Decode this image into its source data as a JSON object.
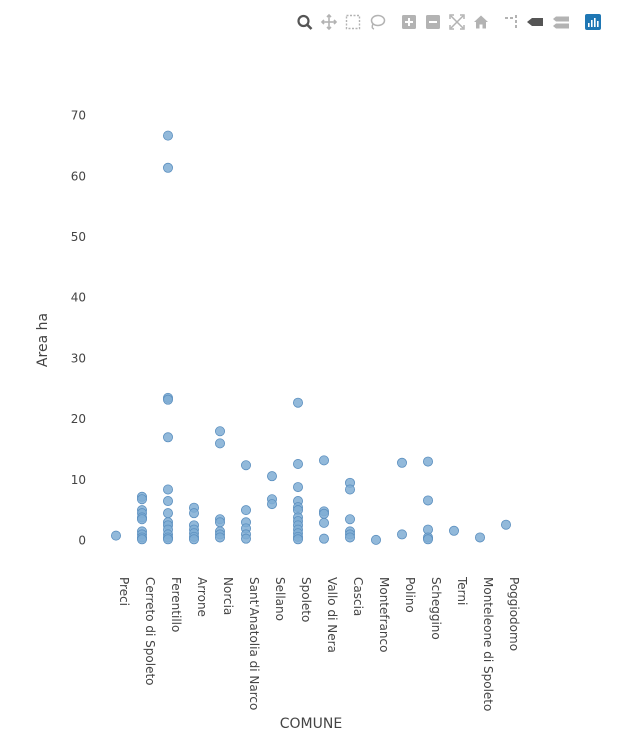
{
  "modebar": {
    "buttons": [
      "zoom-icon",
      "pan-icon",
      "box-select-icon",
      "lasso-select-icon",
      "zoom-in-icon",
      "zoom-out-icon",
      "autoscale-icon",
      "reset-axes-icon",
      "spike-lines-icon",
      "hover-closest-icon",
      "hover-compare-icon",
      "plotly-logo-icon"
    ],
    "accent": "#1f77b4",
    "icon_color": "#b3b3b3"
  },
  "chart_data": {
    "type": "scatter",
    "title": "",
    "xlabel": "COMUNE",
    "ylabel": "Area ha",
    "categories": [
      "Preci",
      "Cerreto di Spoleto",
      "Ferentillo",
      "Arrone",
      "Norcia",
      "Sant'Anatolia di Narco",
      "Sellano",
      "Spoleto",
      "Vallo di Nera",
      "Cascia",
      "Montefranco",
      "Polino",
      "Scheggino",
      "Terni",
      "Monteleone di Spoleto",
      "Poggiodomo"
    ],
    "yticks": [
      0,
      10,
      20,
      30,
      40,
      50,
      60,
      70
    ],
    "ylim": [
      -3,
      73
    ],
    "grid": false,
    "marker_color": "#7fadd3",
    "marker_line": "#5b8fbf",
    "points": [
      {
        "x": "Preci",
        "y": 0.8
      },
      {
        "x": "Cerreto di Spoleto",
        "y": 7.2
      },
      {
        "x": "Cerreto di Spoleto",
        "y": 6.8
      },
      {
        "x": "Cerreto di Spoleto",
        "y": 5.0
      },
      {
        "x": "Cerreto di Spoleto",
        "y": 4.5
      },
      {
        "x": "Cerreto di Spoleto",
        "y": 3.8
      },
      {
        "x": "Cerreto di Spoleto",
        "y": 3.5
      },
      {
        "x": "Cerreto di Spoleto",
        "y": 1.5
      },
      {
        "x": "Cerreto di Spoleto",
        "y": 1.0
      },
      {
        "x": "Cerreto di Spoleto",
        "y": 0.5
      },
      {
        "x": "Cerreto di Spoleto",
        "y": 0.2
      },
      {
        "x": "Ferentillo",
        "y": 66.7
      },
      {
        "x": "Ferentillo",
        "y": 61.4
      },
      {
        "x": "Ferentillo",
        "y": 23.5
      },
      {
        "x": "Ferentillo",
        "y": 23.2
      },
      {
        "x": "Ferentillo",
        "y": 17.0
      },
      {
        "x": "Ferentillo",
        "y": 8.4
      },
      {
        "x": "Ferentillo",
        "y": 6.5
      },
      {
        "x": "Ferentillo",
        "y": 4.5
      },
      {
        "x": "Ferentillo",
        "y": 3.0
      },
      {
        "x": "Ferentillo",
        "y": 2.5
      },
      {
        "x": "Ferentillo",
        "y": 1.8
      },
      {
        "x": "Ferentillo",
        "y": 1.0
      },
      {
        "x": "Ferentillo",
        "y": 0.5
      },
      {
        "x": "Ferentillo",
        "y": 0.2
      },
      {
        "x": "Arrone",
        "y": 5.4
      },
      {
        "x": "Arrone",
        "y": 4.5
      },
      {
        "x": "Arrone",
        "y": 2.5
      },
      {
        "x": "Arrone",
        "y": 1.8
      },
      {
        "x": "Arrone",
        "y": 1.2
      },
      {
        "x": "Arrone",
        "y": 0.6
      },
      {
        "x": "Arrone",
        "y": 0.2
      },
      {
        "x": "Norcia",
        "y": 18.0
      },
      {
        "x": "Norcia",
        "y": 16.0
      },
      {
        "x": "Norcia",
        "y": 3.5
      },
      {
        "x": "Norcia",
        "y": 3.0
      },
      {
        "x": "Norcia",
        "y": 1.5
      },
      {
        "x": "Norcia",
        "y": 1.0
      },
      {
        "x": "Norcia",
        "y": 0.5
      },
      {
        "x": "Sant'Anatolia di Narco",
        "y": 12.4
      },
      {
        "x": "Sant'Anatolia di Narco",
        "y": 5.0
      },
      {
        "x": "Sant'Anatolia di Narco",
        "y": 3.0
      },
      {
        "x": "Sant'Anatolia di Narco",
        "y": 2.0
      },
      {
        "x": "Sant'Anatolia di Narco",
        "y": 1.0
      },
      {
        "x": "Sant'Anatolia di Narco",
        "y": 0.3
      },
      {
        "x": "Sellano",
        "y": 10.6
      },
      {
        "x": "Sellano",
        "y": 6.8
      },
      {
        "x": "Sellano",
        "y": 6.0
      },
      {
        "x": "Spoleto",
        "y": 22.7
      },
      {
        "x": "Spoleto",
        "y": 12.6
      },
      {
        "x": "Spoleto",
        "y": 8.8
      },
      {
        "x": "Spoleto",
        "y": 6.5
      },
      {
        "x": "Spoleto",
        "y": 5.5
      },
      {
        "x": "Spoleto",
        "y": 5.0
      },
      {
        "x": "Spoleto",
        "y": 3.8
      },
      {
        "x": "Spoleto",
        "y": 3.2
      },
      {
        "x": "Spoleto",
        "y": 2.5
      },
      {
        "x": "Spoleto",
        "y": 1.8
      },
      {
        "x": "Spoleto",
        "y": 1.2
      },
      {
        "x": "Spoleto",
        "y": 0.6
      },
      {
        "x": "Spoleto",
        "y": 0.2
      },
      {
        "x": "Vallo di Nera",
        "y": 13.2
      },
      {
        "x": "Vallo di Nera",
        "y": 4.8
      },
      {
        "x": "Vallo di Nera",
        "y": 4.4
      },
      {
        "x": "Vallo di Nera",
        "y": 2.9
      },
      {
        "x": "Vallo di Nera",
        "y": 0.3
      },
      {
        "x": "Cascia",
        "y": 9.5
      },
      {
        "x": "Cascia",
        "y": 8.4
      },
      {
        "x": "Cascia",
        "y": 3.5
      },
      {
        "x": "Cascia",
        "y": 1.5
      },
      {
        "x": "Cascia",
        "y": 1.0
      },
      {
        "x": "Cascia",
        "y": 0.5
      },
      {
        "x": "Montefranco",
        "y": 0.1
      },
      {
        "x": "Polino",
        "y": 12.8
      },
      {
        "x": "Polino",
        "y": 1.0
      },
      {
        "x": "Scheggino",
        "y": 13.0
      },
      {
        "x": "Scheggino",
        "y": 6.6
      },
      {
        "x": "Scheggino",
        "y": 1.8
      },
      {
        "x": "Scheggino",
        "y": 0.5
      },
      {
        "x": "Scheggino",
        "y": 0.2
      },
      {
        "x": "Terni",
        "y": 1.6
      },
      {
        "x": "Monteleone di Spoleto",
        "y": 0.5
      },
      {
        "x": "Poggiodomo",
        "y": 2.6
      }
    ]
  }
}
